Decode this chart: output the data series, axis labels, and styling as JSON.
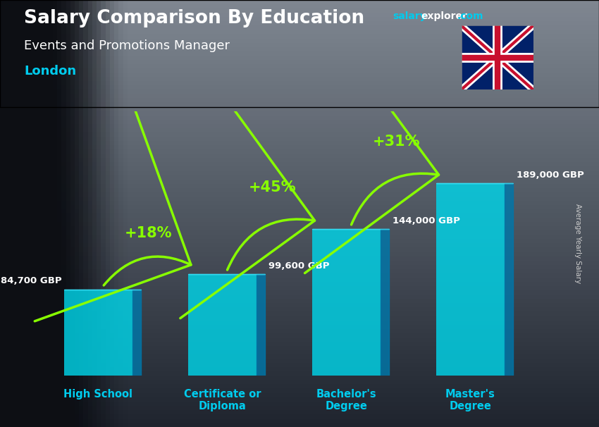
{
  "title_line1": "Salary Comparison By Education",
  "subtitle": "Events and Promotions Manager",
  "location": "London",
  "ylabel": "Average Yearly Salary",
  "categories": [
    "High School",
    "Certificate or\nDiploma",
    "Bachelor's\nDegree",
    "Master's\nDegree"
  ],
  "values": [
    84700,
    99600,
    144000,
    189000
  ],
  "value_labels": [
    "84,700 GBP",
    "99,600 GBP",
    "144,000 GBP",
    "189,000 GBP"
  ],
  "pct_labels": [
    "+18%",
    "+45%",
    "+31%"
  ],
  "bar_color_front": "#00d4e8",
  "bar_color_dark": "#0077aa",
  "bar_alpha": 0.82,
  "bg_color": "#3a4a5a",
  "title_color": "#ffffff",
  "subtitle_color": "#ffffff",
  "location_color": "#00ccee",
  "value_label_color": "#ffffff",
  "pct_color": "#88ff00",
  "xlabel_color": "#00ccee",
  "ylabel_color": "#cccccc",
  "ylim": [
    0,
    260000
  ],
  "bar_width": 0.55,
  "bar_depth": 0.07,
  "bar_positions": [
    0,
    1,
    2,
    3
  ]
}
